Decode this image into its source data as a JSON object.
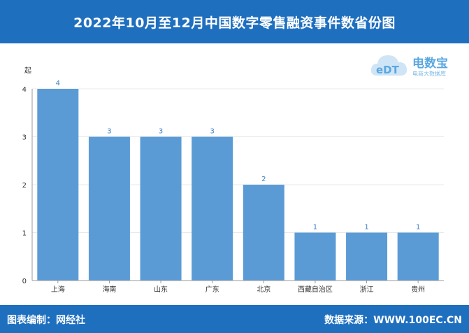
{
  "header": {
    "title": "2022年10月至12月中国数字零售融资事件数省份图"
  },
  "footer": {
    "left": "图表编制：网经社",
    "right": "数据来源：WWW.100EC.CN"
  },
  "logo": {
    "text": "电数宝",
    "sub": "电商大数据库",
    "mark": "eDT",
    "color": "#5aa7e0"
  },
  "chart_data": {
    "type": "bar",
    "categories": [
      "上海",
      "海南",
      "山东",
      "广东",
      "北京",
      "西藏自治区",
      "浙江",
      "贵州"
    ],
    "values": [
      4,
      3,
      3,
      3,
      2,
      1,
      1,
      1
    ],
    "ylabel": "起",
    "ylim": [
      0,
      4
    ],
    "yticks": [
      0,
      1,
      2,
      3,
      4
    ],
    "grid": true,
    "bar_color": "#5b9bd5",
    "label_color": "#3b7fc4"
  }
}
